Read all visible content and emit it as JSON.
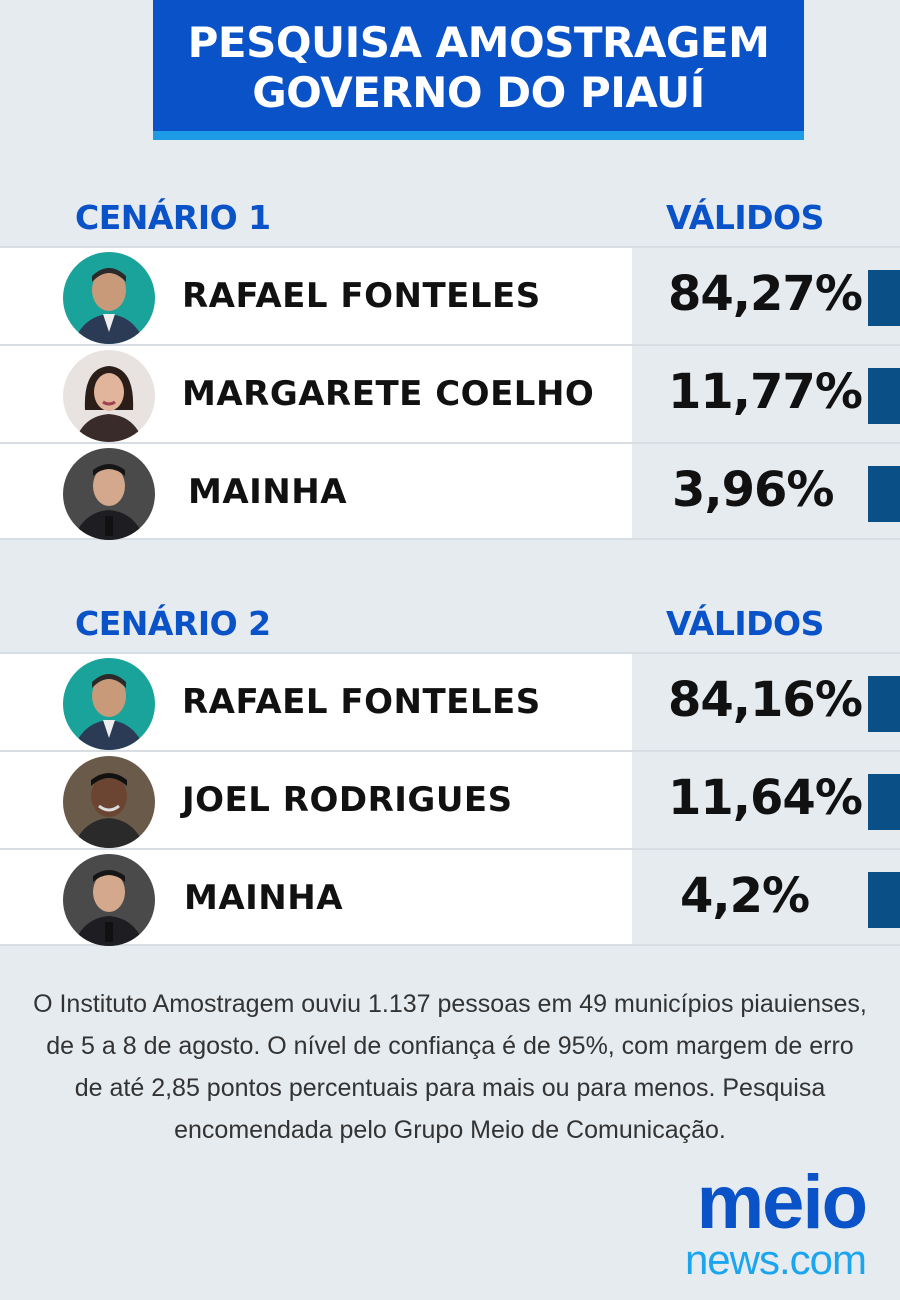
{
  "header": {
    "line1": "PESQUISA AMOSTRAGEM",
    "line2": "GOVERNO DO PIAUÍ"
  },
  "scenarios": [
    {
      "label": "CENÁRIO 1",
      "column": "VÁLIDOS",
      "candidates": [
        {
          "name": "RAFAEL FONTELES",
          "percent": "84,27%",
          "icon": "candidate-photo"
        },
        {
          "name": "MARGARETE COELHO",
          "percent": "11,77%",
          "icon": "candidate-photo"
        },
        {
          "name": "MAINHA",
          "percent": "3,96%",
          "icon": "candidate-photo"
        }
      ]
    },
    {
      "label": "CENÁRIO 2",
      "column": "VÁLIDOS",
      "candidates": [
        {
          "name": "RAFAEL FONTELES",
          "percent": "84,16%",
          "icon": "candidate-photo"
        },
        {
          "name": "JOEL RODRIGUES",
          "percent": "11,64%",
          "icon": "candidate-photo"
        },
        {
          "name": "MAINHA",
          "percent": "4,2%",
          "icon": "candidate-photo"
        }
      ]
    }
  ],
  "footnote": "O Instituto Amostragem ouviu 1.137 pessoas em 49 municípios piauienses, de 5 a 8 de agosto. O nível de confiança é de 95%, com margem de erro de até 2,85 pontos percentuais para mais ou para menos. Pesquisa encomendada pelo Grupo  Meio de Comunicação.",
  "logo": {
    "top": "meio",
    "bottom": "news.com"
  },
  "colors": {
    "brand_blue": "#0a52c8",
    "accent_blue": "#1e9be6",
    "bar_blue": "#0a4f86",
    "background": "#e6ebf0"
  }
}
